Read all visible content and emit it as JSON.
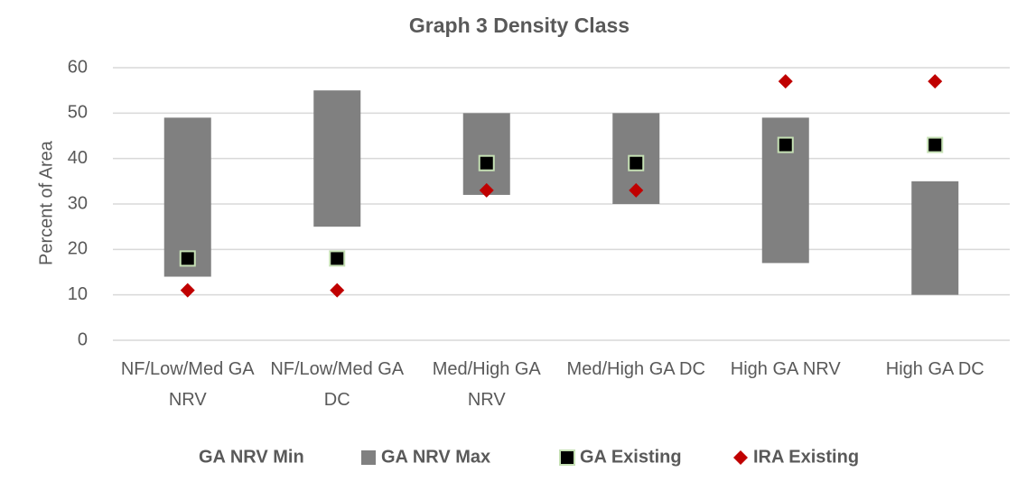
{
  "chart_data": {
    "type": "floating_bar",
    "title": "Graph 3 Density Class",
    "y_label": "Percent of Area",
    "categories": [
      "NF/Low/Med GA NRV",
      "NF/Low/Med GA DC",
      "Med/High GA NRV",
      "Med/High GA DC",
      "High GA NRV",
      "High GA DC"
    ],
    "series": [
      {
        "name": "GA NRV Min",
        "color": "none",
        "kind": "bar",
        "values": [
          14,
          25,
          32,
          30,
          17,
          10
        ]
      },
      {
        "name": "GA NRV Max",
        "color": "#808080",
        "kind": "bar",
        "values": [
          35,
          30,
          18,
          20,
          32,
          25
        ]
      },
      {
        "name": "GA Existing",
        "color": "#000000",
        "kind": "square",
        "values": [
          18,
          18,
          39,
          39,
          43,
          43
        ]
      },
      {
        "name": "IRA Existing",
        "color": "#c00000",
        "kind": "diamond",
        "values": [
          11,
          11,
          33,
          33,
          57,
          57
        ]
      }
    ],
    "ylim": [
      0,
      60
    ],
    "yticks": [
      0,
      10,
      20,
      30,
      40,
      50,
      60
    ],
    "grid": true,
    "legend": "bottom"
  }
}
